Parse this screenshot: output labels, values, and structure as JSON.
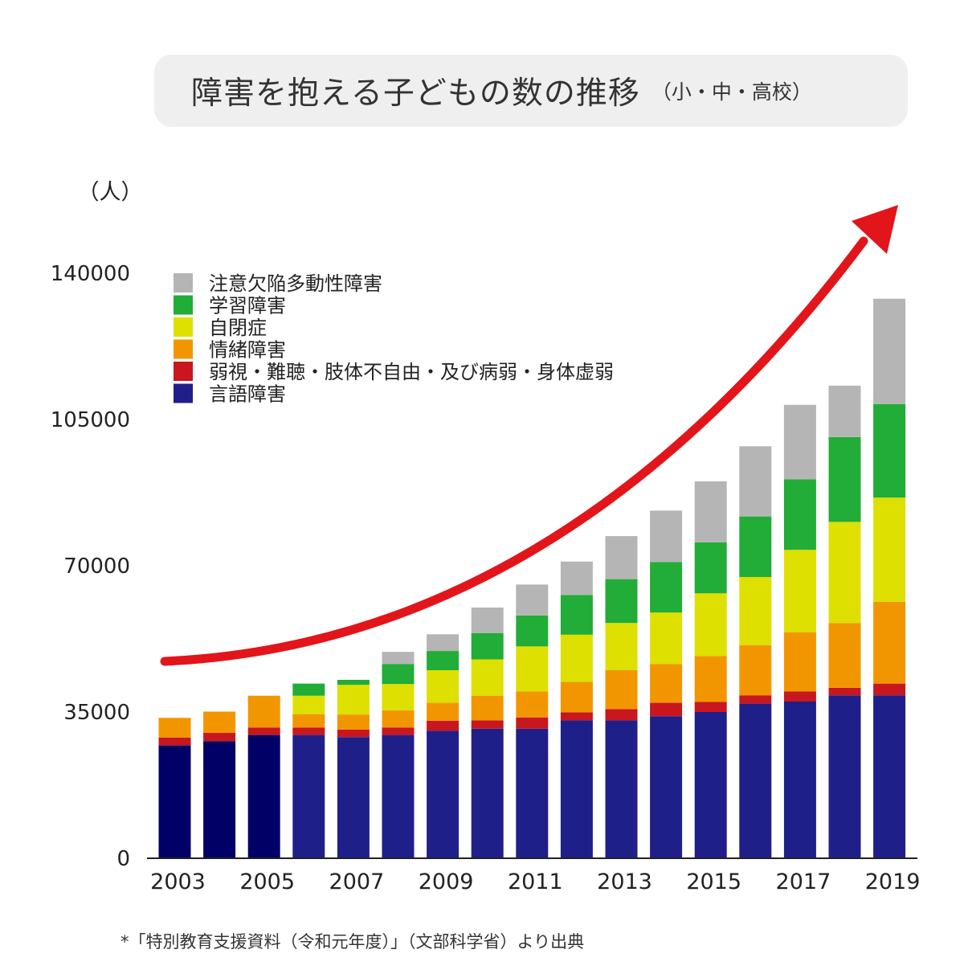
{
  "header": {
    "title": "障害を抱える子どもの数の推移",
    "subtitle": "（小・中・高校）"
  },
  "chart_data": {
    "type": "bar",
    "stacked": true,
    "ylabel": "（人）",
    "ylim": [
      0,
      140000
    ],
    "yticks": [
      0,
      35000,
      70000,
      105000,
      140000
    ],
    "categories": [
      "2003",
      "2004",
      "2005",
      "2006",
      "2007",
      "2008",
      "2009",
      "2010",
      "2011",
      "2012",
      "2013",
      "2014",
      "2015",
      "2016",
      "2017",
      "2018",
      "2019"
    ],
    "xtick_labels": [
      "2003",
      "2005",
      "2007",
      "2009",
      "2011",
      "2013",
      "2015",
      "2017",
      "2019"
    ],
    "legend_position": "top-left",
    "trend_arrow": true,
    "series": [
      {
        "name": "言語障害",
        "color": "#1f1f8a",
        "values": [
          27000,
          28000,
          29500,
          29500,
          29000,
          29500,
          30500,
          31000,
          31000,
          33000,
          33000,
          34000,
          35000,
          37000,
          37500,
          39000,
          39000
        ]
      },
      {
        "name": "弱視・難聴・肢体不自由・及び病弱・身体虚弱",
        "color": "#c8171e",
        "values": [
          1900,
          2000,
          1800,
          1800,
          1800,
          1800,
          2400,
          2000,
          2700,
          1900,
          2700,
          3200,
          2400,
          2000,
          2400,
          1800,
          2800
        ]
      },
      {
        "name": "情緒障害",
        "color": "#f29600",
        "values": [
          4700,
          5100,
          7600,
          3200,
          3600,
          4100,
          4300,
          5900,
          6200,
          7300,
          9300,
          9300,
          11000,
          12000,
          14200,
          15500,
          19600
        ]
      },
      {
        "name": "自閉症",
        "color": "#dde000",
        "values": [
          0,
          0,
          0,
          4400,
          7100,
          6300,
          7800,
          8700,
          10800,
          11300,
          11300,
          12300,
          15000,
          16300,
          19700,
          24200,
          24900
        ]
      },
      {
        "name": "学習障害",
        "color": "#22ac38",
        "values": [
          0,
          0,
          0,
          2900,
          1200,
          4800,
          4600,
          6300,
          7400,
          9500,
          10500,
          12100,
          12200,
          14500,
          16900,
          20300,
          22400
        ]
      },
      {
        "name": "注意欠陥多動性障害",
        "color": "#b5b5b5",
        "values": [
          0,
          0,
          0,
          0,
          0,
          2900,
          4000,
          6100,
          7400,
          8000,
          10300,
          12300,
          14600,
          16800,
          17800,
          12300,
          25200
        ]
      }
    ]
  },
  "source_note": "*「特別教育支援資料（令和元年度）」（文部科学省）より出典"
}
